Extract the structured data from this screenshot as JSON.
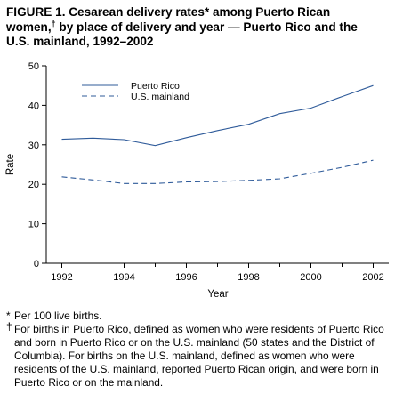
{
  "title": {
    "line1": "FIGURE 1. Cesarean delivery rates* among Puerto Rican",
    "line2a": "women,",
    "line2_mark": "†",
    "line2b": " by place of delivery and year — Puerto Rico and the",
    "line3": "U.S. mainland, 1992–2002"
  },
  "chart_data": {
    "type": "line",
    "xlabel": "Year",
    "ylabel": "Rate",
    "xlim": [
      1991.5,
      2002.5
    ],
    "ylim": [
      0,
      50
    ],
    "x_tick_labels": [
      "1992",
      "1994",
      "1996",
      "1998",
      "2000",
      "2002"
    ],
    "x_minor_ticks": [
      1993,
      1995,
      1997,
      1999,
      2001
    ],
    "y_tick_labels": [
      "0",
      "10",
      "20",
      "30",
      "40",
      "50"
    ],
    "legend_placement": "top-left",
    "grid": false,
    "x": [
      1992,
      1993,
      1994,
      1995,
      1996,
      1997,
      1998,
      1999,
      2000,
      2001,
      2002
    ],
    "series": [
      {
        "name": "Puerto Rico",
        "style": "solid",
        "color": "#2f5b9a",
        "values": [
          31.4,
          31.7,
          31.3,
          29.8,
          31.8,
          33.6,
          35.2,
          37.9,
          39.3,
          42.2,
          45.0
        ]
      },
      {
        "name": "U.S. mainland",
        "style": "dashed",
        "color": "#2f5b9a",
        "values": [
          21.9,
          21.1,
          20.2,
          20.2,
          20.6,
          20.7,
          21.0,
          21.4,
          22.8,
          24.3,
          26.1
        ]
      }
    ]
  },
  "footnotes": {
    "star_mark": "*",
    "star_text": "Per 100 live births.",
    "dagger_mark": "†",
    "dagger_text": "For births in Puerto Rico, defined as women who were residents of Puerto Rico and born in Puerto Rico or on the U.S. mainland (50 states and the District of Columbia). For births on the U.S. mainland, defined as women who were residents of the U.S. mainland, reported Puerto Rican origin, and were born in Puerto Rico or on the mainland."
  }
}
